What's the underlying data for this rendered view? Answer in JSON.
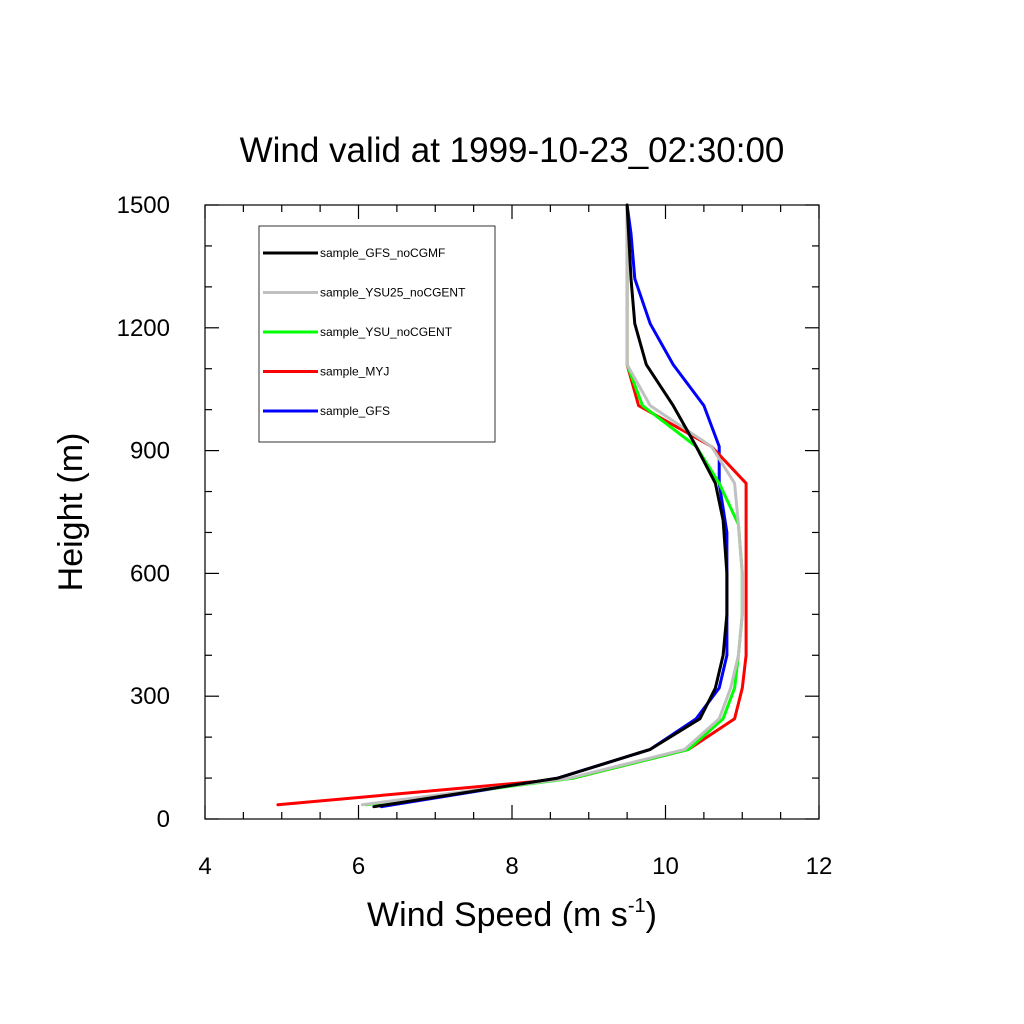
{
  "chart_data": {
    "type": "line",
    "title": "Wind valid at 1999-10-23_02:30:00",
    "xlabel": "Wind Speed (m s",
    "xlabel_sup": "-1",
    "xlabel_end": ")",
    "ylabel": "Height (m)",
    "xlim": [
      4,
      12
    ],
    "ylim": [
      0,
      1500
    ],
    "x_ticks": [
      "4",
      "6",
      "8",
      "10",
      "12"
    ],
    "y_ticks": [
      "0",
      "300",
      "600",
      "900",
      "1200",
      "1500"
    ],
    "grid": false,
    "legend_position": "top-left",
    "series": [
      {
        "name": "sample_GFS",
        "color": "#0000ff",
        "points": [
          [
            6.3,
            30
          ],
          [
            8.6,
            100
          ],
          [
            9.8,
            170
          ],
          [
            10.4,
            245
          ],
          [
            10.7,
            320
          ],
          [
            10.8,
            400
          ],
          [
            10.8,
            500
          ],
          [
            10.8,
            600
          ],
          [
            10.8,
            700
          ],
          [
            10.7,
            820
          ],
          [
            10.7,
            910
          ],
          [
            10.5,
            1010
          ],
          [
            10.1,
            1110
          ],
          [
            9.8,
            1210
          ],
          [
            9.6,
            1320
          ],
          [
            9.55,
            1430
          ],
          [
            9.5,
            1500
          ]
        ]
      },
      {
        "name": "sample_MYJ",
        "color": "#ff0000",
        "points": [
          [
            4.95,
            35
          ],
          [
            8.8,
            100
          ],
          [
            10.3,
            170
          ],
          [
            10.9,
            245
          ],
          [
            11.0,
            320
          ],
          [
            11.05,
            400
          ],
          [
            11.05,
            500
          ],
          [
            11.05,
            600
          ],
          [
            11.05,
            730
          ],
          [
            11.05,
            820
          ],
          [
            10.6,
            910
          ],
          [
            9.65,
            1010
          ],
          [
            9.5,
            1110
          ],
          [
            9.5,
            1210
          ],
          [
            9.5,
            1320
          ],
          [
            9.5,
            1500
          ]
        ]
      },
      {
        "name": "sample_YSU_noCGENT",
        "color": "#00ff00",
        "points": [
          [
            6.1,
            35
          ],
          [
            8.8,
            100
          ],
          [
            10.3,
            170
          ],
          [
            10.75,
            245
          ],
          [
            10.9,
            320
          ],
          [
            10.95,
            400
          ],
          [
            11.0,
            500
          ],
          [
            11.0,
            600
          ],
          [
            10.95,
            720
          ],
          [
            10.7,
            820
          ],
          [
            10.4,
            910
          ],
          [
            9.7,
            1010
          ],
          [
            9.5,
            1110
          ],
          [
            9.5,
            1210
          ],
          [
            9.5,
            1320
          ],
          [
            9.5,
            1500
          ]
        ]
      },
      {
        "name": "sample_YSU25_noCGENT",
        "color": "#c0c0c0",
        "points": [
          [
            6.05,
            35
          ],
          [
            8.75,
            100
          ],
          [
            10.25,
            170
          ],
          [
            10.7,
            245
          ],
          [
            10.85,
            320
          ],
          [
            10.95,
            400
          ],
          [
            11.0,
            500
          ],
          [
            11.0,
            600
          ],
          [
            10.95,
            720
          ],
          [
            10.9,
            820
          ],
          [
            10.6,
            910
          ],
          [
            9.8,
            1010
          ],
          [
            9.5,
            1110
          ],
          [
            9.5,
            1210
          ],
          [
            9.5,
            1320
          ],
          [
            9.5,
            1500
          ]
        ]
      },
      {
        "name": "sample_GFS_noCGMF",
        "color": "#000000",
        "points": [
          [
            6.2,
            30
          ],
          [
            8.6,
            100
          ],
          [
            9.8,
            170
          ],
          [
            10.45,
            245
          ],
          [
            10.65,
            320
          ],
          [
            10.75,
            400
          ],
          [
            10.8,
            500
          ],
          [
            10.8,
            600
          ],
          [
            10.75,
            730
          ],
          [
            10.65,
            820
          ],
          [
            10.4,
            910
          ],
          [
            10.1,
            1010
          ],
          [
            9.75,
            1110
          ],
          [
            9.6,
            1210
          ],
          [
            9.55,
            1320
          ],
          [
            9.5,
            1500
          ]
        ]
      }
    ],
    "legend_order": [
      "sample_GFS_noCGMF",
      "sample_YSU25_noCGENT",
      "sample_YSU_noCGENT",
      "sample_MYJ",
      "sample_GFS"
    ]
  }
}
